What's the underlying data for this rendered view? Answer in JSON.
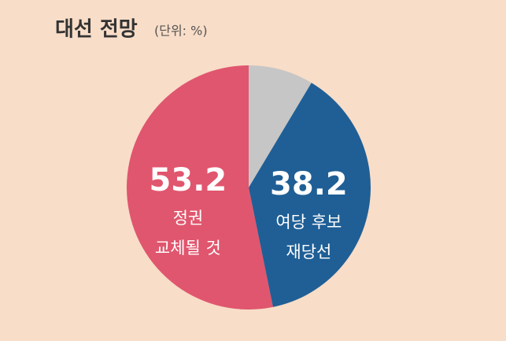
{
  "chart_data": {
    "type": "pie",
    "title": "대선 전망",
    "subtitle": "(단위: %)",
    "categories": [
      [
        "정권",
        "교체될 것"
      ],
      [
        "여당 후보",
        "재당선"
      ],
      null
    ],
    "values": [
      53.2,
      38.2,
      8.6
    ],
    "colors": [
      "#e0566e",
      "#1f5f96",
      "#c6c6c6"
    ]
  }
}
